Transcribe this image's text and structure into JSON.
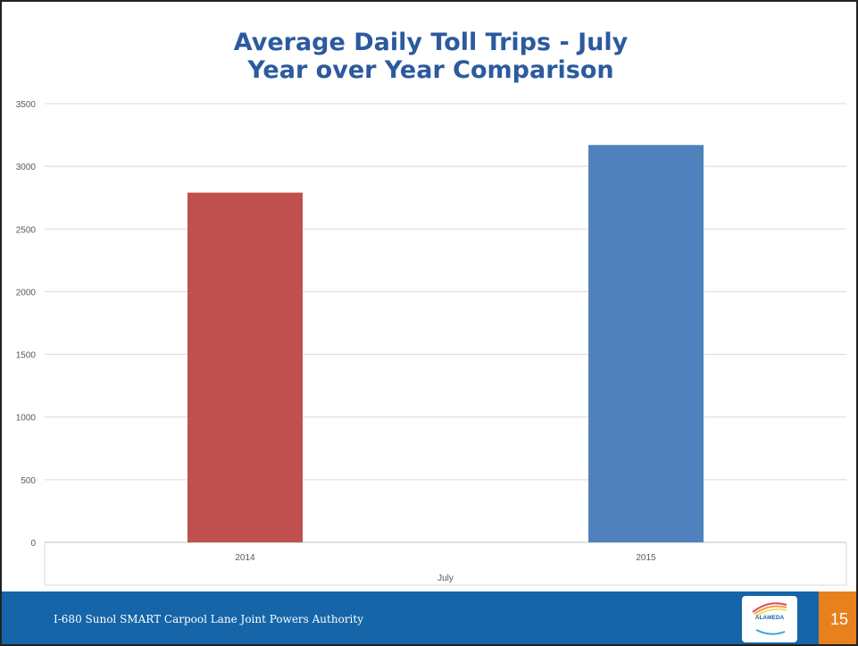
{
  "chart_data": {
    "type": "bar",
    "title": [
      "Average Daily Toll Trips - July",
      "Year over Year Comparison"
    ],
    "categories": [
      "2014",
      "2015"
    ],
    "values": [
      2790,
      3170
    ],
    "colors": [
      "#c0504d",
      "#4f81bd"
    ],
    "xlabel": "July",
    "ylabel": "",
    "ylim": [
      0,
      3500
    ],
    "yticks": [
      "0",
      "500",
      "1000",
      "1500",
      "2000",
      "2500",
      "3000",
      "3500"
    ],
    "grid": true,
    "legend": "none"
  },
  "footer": {
    "text": "I-680 Sunol SMART Carpool Lane Joint Powers Authority",
    "logo_text": "ALAMEDA",
    "logo_icon": "alameda-ctc-logo",
    "page_number": "15",
    "bar_color": "#1565a8",
    "page_color": "#e8811c"
  }
}
